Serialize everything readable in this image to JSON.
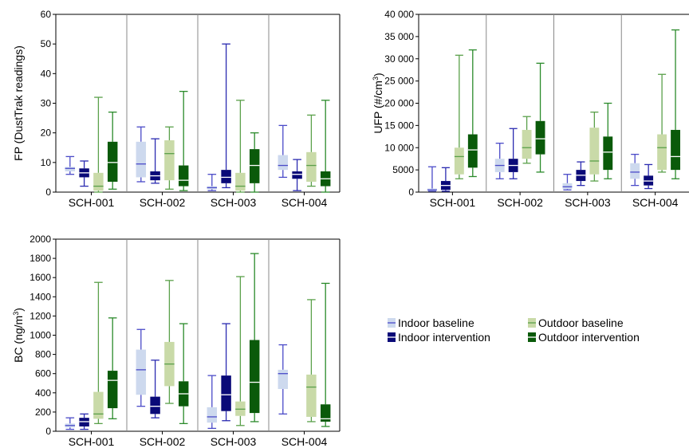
{
  "legend": [
    {
      "name": "Indoor baseline",
      "color": "#cdd9ee",
      "stroke": "#4a4ac8"
    },
    {
      "name": "Indoor intervention",
      "color": "#0a0a78",
      "stroke": "#2a2ab0"
    },
    {
      "name": "Outdoor baseline",
      "color": "#c9daa8",
      "stroke": "#5aa04a"
    },
    {
      "name": "Outdoor intervention",
      "color": "#0a5a0a",
      "stroke": "#2a8a2a"
    }
  ],
  "chart_data": [
    {
      "type": "box",
      "ylabel": "FP (DustTrak readings)",
      "ylim": [
        0,
        60
      ],
      "yticks": [
        "0",
        "10",
        "20",
        "30",
        "40",
        "50",
        "60"
      ],
      "categories": [
        "SCH-001",
        "SCH-002",
        "SCH-003",
        "SCH-004"
      ],
      "series": [
        {
          "name": "Indoor baseline",
          "boxes": [
            {
              "min": 6,
              "q1": 7,
              "median": 8,
              "q3": 8.5,
              "max": 12
            },
            {
              "min": 3.5,
              "q1": 5,
              "median": 9.5,
              "q3": 17,
              "max": 22
            },
            {
              "min": 0.5,
              "q1": 1,
              "median": 1.5,
              "q3": 2,
              "max": 6
            },
            {
              "min": 5,
              "q1": 7.5,
              "median": 9,
              "q3": 12.5,
              "max": 22.5
            }
          ]
        },
        {
          "name": "Indoor intervention",
          "boxes": [
            {
              "min": 2,
              "q1": 5,
              "median": 6.5,
              "q3": 8,
              "max": 10.5
            },
            {
              "min": 3,
              "q1": 4,
              "median": 5.5,
              "q3": 7,
              "max": 18
            },
            {
              "min": 1.5,
              "q1": 3,
              "median": 5,
              "q3": 7.5,
              "max": 50
            },
            {
              "min": 0.5,
              "q1": 4.5,
              "median": 6,
              "q3": 7,
              "max": 11
            }
          ]
        },
        {
          "name": "Outdoor baseline",
          "boxes": [
            {
              "min": 0,
              "q1": 0.5,
              "median": 2,
              "q3": 6.5,
              "max": 32
            },
            {
              "min": 1,
              "q1": 4,
              "median": 13,
              "q3": 17.5,
              "max": 22
            },
            {
              "min": 0,
              "q1": 0.5,
              "median": 2,
              "q3": 6.5,
              "max": 31
            },
            {
              "min": 2,
              "q1": 3.5,
              "median": 9,
              "q3": 13.5,
              "max": 26
            }
          ]
        },
        {
          "name": "Outdoor intervention",
          "boxes": [
            {
              "min": 1,
              "q1": 3.5,
              "median": 10,
              "q3": 17,
              "max": 27
            },
            {
              "min": 0.5,
              "q1": 2,
              "median": 4,
              "q3": 9,
              "max": 34
            },
            {
              "min": 0,
              "q1": 3,
              "median": 9,
              "q3": 14.5,
              "max": 20
            },
            {
              "min": 0,
              "q1": 2,
              "median": 4.5,
              "q3": 7,
              "max": 31
            }
          ]
        }
      ]
    },
    {
      "type": "box",
      "ylabel": "UFP (#/cm",
      "ylabel_sup": "3",
      "ylabel_suffix": ")",
      "ylim": [
        0,
        40000
      ],
      "yticks": [
        "0",
        "5000",
        "10 000",
        "15 000",
        "20 000",
        "25 000",
        "30 000",
        "35 000",
        "40 000"
      ],
      "categories": [
        "SCH-001",
        "SCH-002",
        "SCH-003",
        "SCH-004"
      ],
      "series": [
        {
          "name": "Indoor baseline",
          "boxes": [
            {
              "min": 200,
              "q1": 300,
              "median": 500,
              "q3": 800,
              "max": 5700
            },
            {
              "min": 3000,
              "q1": 4500,
              "median": 6000,
              "q3": 7500,
              "max": 11000
            },
            {
              "min": 500,
              "q1": 700,
              "median": 1200,
              "q3": 2000,
              "max": 4000
            },
            {
              "min": 1500,
              "q1": 3000,
              "median": 4500,
              "q3": 6500,
              "max": 8500
            }
          ]
        },
        {
          "name": "Indoor intervention",
          "boxes": [
            {
              "min": 200,
              "q1": 500,
              "median": 1500,
              "q3": 2500,
              "max": 5500
            },
            {
              "min": 3000,
              "q1": 4500,
              "median": 6000,
              "q3": 7500,
              "max": 14300
            },
            {
              "min": 1500,
              "q1": 2500,
              "median": 3800,
              "q3": 5000,
              "max": 6800
            },
            {
              "min": 800,
              "q1": 1500,
              "median": 2500,
              "q3": 3700,
              "max": 6200
            }
          ]
        },
        {
          "name": "Outdoor baseline",
          "boxes": [
            {
              "min": 3000,
              "q1": 4000,
              "median": 8000,
              "q3": 10000,
              "max": 30800
            },
            {
              "min": 6500,
              "q1": 7500,
              "median": 10000,
              "q3": 14000,
              "max": 17000
            },
            {
              "min": 2500,
              "q1": 4000,
              "median": 7000,
              "q3": 14500,
              "max": 18000
            },
            {
              "min": 4500,
              "q1": 5000,
              "median": 10000,
              "q3": 13000,
              "max": 26500
            }
          ]
        },
        {
          "name": "Outdoor intervention",
          "boxes": [
            {
              "min": 3500,
              "q1": 5500,
              "median": 9500,
              "q3": 13000,
              "max": 32000
            },
            {
              "min": 4500,
              "q1": 8500,
              "median": 12000,
              "q3": 16000,
              "max": 29000
            },
            {
              "min": 3000,
              "q1": 5000,
              "median": 9000,
              "q3": 12500,
              "max": 20000
            },
            {
              "min": 3000,
              "q1": 5000,
              "median": 8000,
              "q3": 14000,
              "max": 36500
            }
          ]
        }
      ]
    },
    {
      "type": "box",
      "ylabel": "BC (ng/m",
      "ylabel_sup": "3",
      "ylabel_suffix": ")",
      "ylim": [
        0,
        2000
      ],
      "yticks": [
        "0",
        "200",
        "400",
        "600",
        "800",
        "1000",
        "1200",
        "1400",
        "1600",
        "1800",
        "2000"
      ],
      "categories": [
        "SCH-001",
        "SCH-002",
        "SCH-003",
        "SCH-004"
      ],
      "series": [
        {
          "name": "Indoor baseline",
          "boxes": [
            {
              "min": 20,
              "q1": 40,
              "median": 60,
              "q3": 80,
              "max": 140
            },
            {
              "min": 260,
              "q1": 380,
              "median": 640,
              "q3": 850,
              "max": 1060
            },
            {
              "min": 30,
              "q1": 90,
              "median": 150,
              "q3": 250,
              "max": 580
            },
            {
              "min": 180,
              "q1": 440,
              "median": 600,
              "q3": 640,
              "max": 900
            }
          ]
        },
        {
          "name": "Indoor intervention",
          "boxes": [
            {
              "min": 20,
              "q1": 50,
              "median": 100,
              "q3": 140,
              "max": 180
            },
            {
              "min": 140,
              "q1": 180,
              "median": 260,
              "q3": 360,
              "max": 740
            },
            {
              "min": 110,
              "q1": 210,
              "median": 380,
              "q3": 580,
              "max": 1120
            },
            null
          ]
        },
        {
          "name": "Outdoor baseline",
          "boxes": [
            {
              "min": 80,
              "q1": 130,
              "median": 180,
              "q3": 410,
              "max": 1550
            },
            {
              "min": 290,
              "q1": 470,
              "median": 700,
              "q3": 930,
              "max": 1570
            },
            {
              "min": 60,
              "q1": 160,
              "median": 230,
              "q3": 310,
              "max": 1610
            },
            {
              "min": 100,
              "q1": 150,
              "median": 460,
              "q3": 590,
              "max": 1370
            }
          ]
        },
        {
          "name": "Outdoor intervention",
          "boxes": [
            {
              "min": 130,
              "q1": 240,
              "median": 530,
              "q3": 630,
              "max": 1180
            },
            {
              "min": 80,
              "q1": 260,
              "median": 390,
              "q3": 520,
              "max": 1120
            },
            {
              "min": 100,
              "q1": 190,
              "median": 510,
              "q3": 950,
              "max": 1850
            },
            {
              "min": 50,
              "q1": 100,
              "median": 130,
              "q3": 280,
              "max": 1540
            }
          ]
        }
      ]
    }
  ]
}
